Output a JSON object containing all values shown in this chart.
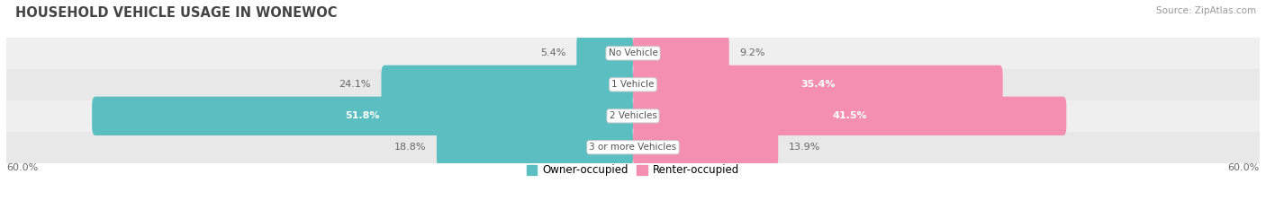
{
  "title": "HOUSEHOLD VEHICLE USAGE IN WONEWOC",
  "source": "Source: ZipAtlas.com",
  "categories": [
    "No Vehicle",
    "1 Vehicle",
    "2 Vehicles",
    "3 or more Vehicles"
  ],
  "owner_values": [
    5.4,
    24.1,
    51.8,
    18.8
  ],
  "renter_values": [
    9.2,
    35.4,
    41.5,
    13.9
  ],
  "owner_color": "#5bbfc2",
  "renter_color": "#f48fb1",
  "axis_max": 60.0,
  "bar_height": 0.62,
  "title_fontsize": 10.5,
  "label_fontsize": 8.0,
  "category_fontsize": 7.5,
  "legend_fontsize": 8.5,
  "source_fontsize": 7.5,
  "row_colors": [
    "#efefef",
    "#e8e8e8"
  ]
}
